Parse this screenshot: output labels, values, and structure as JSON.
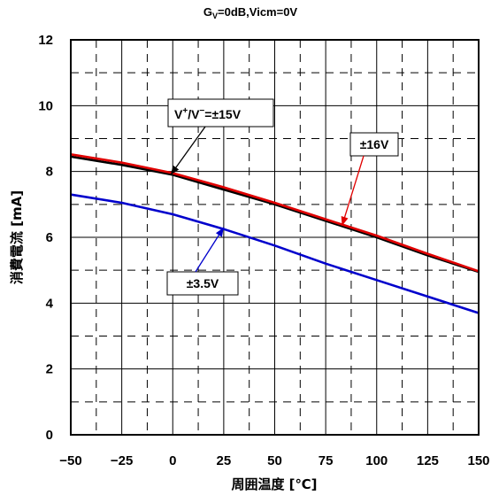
{
  "chart_data": {
    "type": "line",
    "title": {
      "main": "G",
      "sub": "V",
      "rest": "=0dB,Vicm=0V"
    },
    "xlabel": "周囲温度 [℃]",
    "ylabel": "消費電流 [mA]",
    "xlim": [
      -50,
      150
    ],
    "ylim": [
      0,
      12
    ],
    "x_ticks": [
      -50,
      -25,
      0,
      25,
      50,
      75,
      100,
      125,
      150
    ],
    "y_ticks": [
      0,
      2,
      4,
      6,
      8,
      10,
      12
    ],
    "x_tick_labels": [
      "−50",
      "−25",
      "0",
      "25",
      "50",
      "75",
      "100",
      "125",
      "150"
    ],
    "y_tick_labels": [
      "0",
      "2",
      "4",
      "6",
      "8",
      "10",
      "12"
    ],
    "grid": {
      "major": "solid",
      "minor": "dashed"
    },
    "series": [
      {
        "key": "s15",
        "color": "#000000",
        "x": [
          -50,
          -25,
          0,
          25,
          50,
          75,
          100,
          125,
          150
        ],
        "y": [
          8.45,
          8.2,
          7.9,
          7.45,
          7.0,
          6.5,
          6.0,
          5.45,
          4.95
        ]
      },
      {
        "key": "s16",
        "color": "#e00000",
        "x": [
          -50,
          -25,
          0,
          25,
          50,
          75,
          100,
          125,
          150
        ],
        "y": [
          8.52,
          8.27,
          7.95,
          7.52,
          7.05,
          6.55,
          6.05,
          5.5,
          4.97
        ]
      },
      {
        "key": "s35",
        "color": "#0000cc",
        "x": [
          -50,
          -25,
          0,
          25,
          50,
          75,
          100,
          125,
          150
        ],
        "y": [
          7.3,
          7.05,
          6.7,
          6.25,
          5.75,
          5.2,
          4.7,
          4.2,
          3.7
        ]
      }
    ],
    "annotations": [
      {
        "key": "a15",
        "text_parts": [
          "V",
          "+",
          "/V",
          "−",
          "=±15V"
        ],
        "color": "#000000",
        "points_to": [
          -1,
          7.9
        ]
      },
      {
        "key": "a16",
        "text": "±16V",
        "color": "#e00000",
        "points_to": [
          83,
          6.35
        ]
      },
      {
        "key": "a35",
        "text": "±3.5V",
        "color": "#0000cc",
        "points_to": [
          25,
          6.3
        ]
      }
    ]
  }
}
